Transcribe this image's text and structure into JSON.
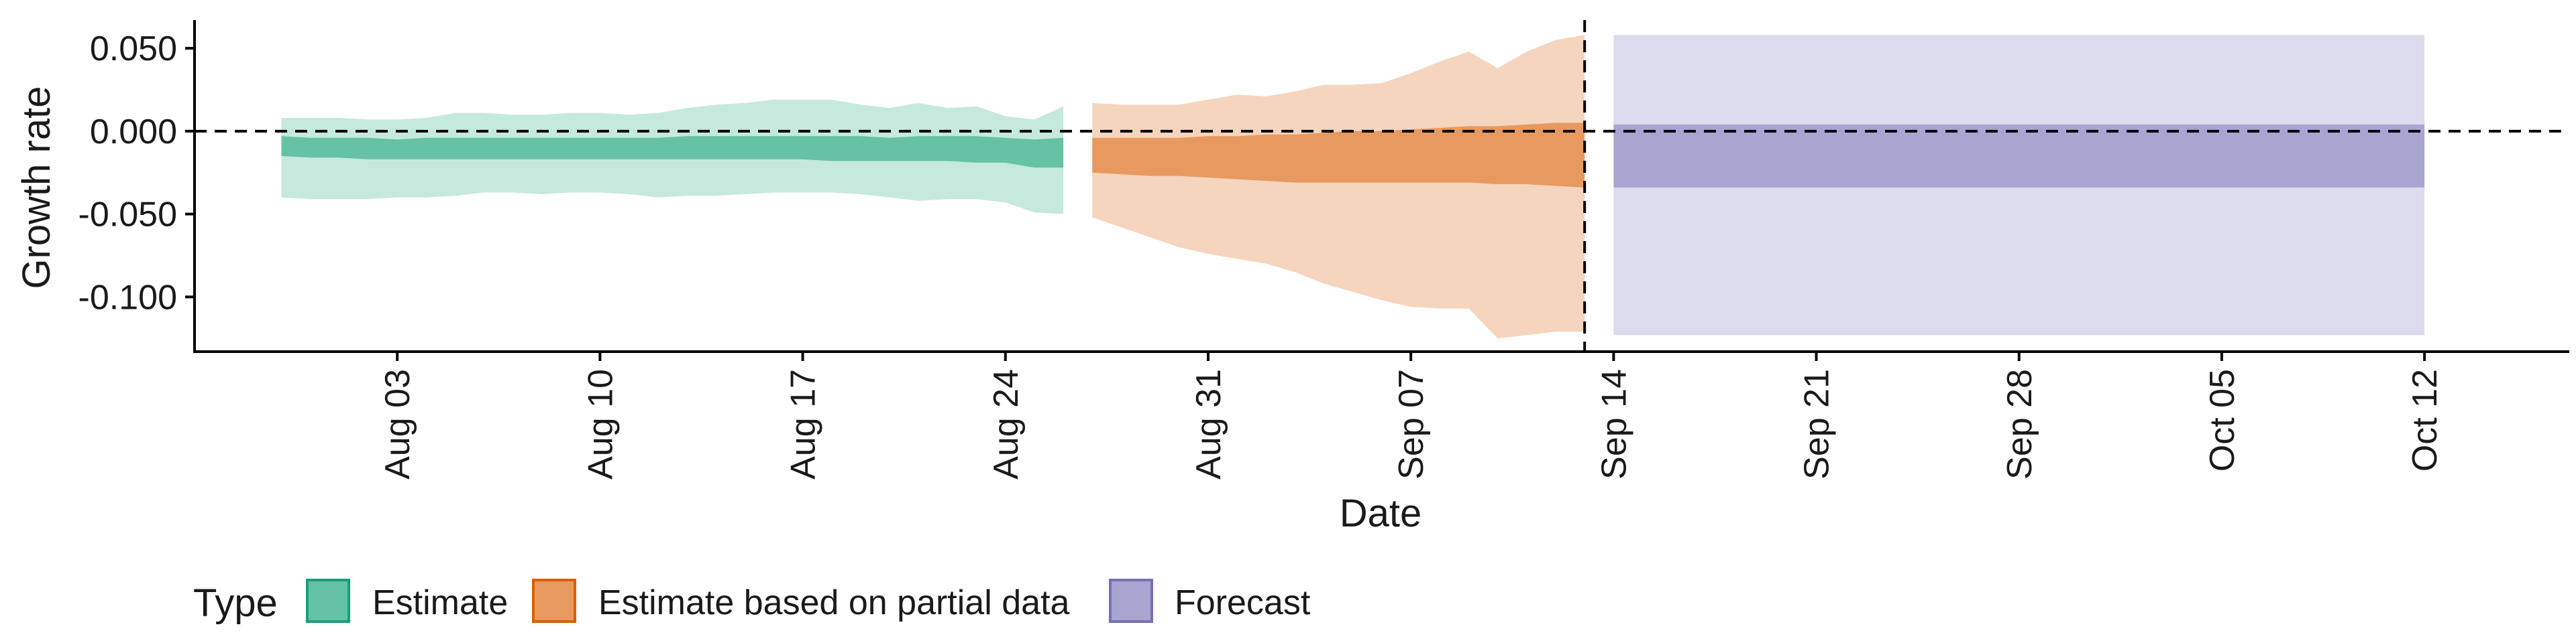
{
  "chart_data": {
    "type": "area",
    "title": "",
    "xlabel": "Date",
    "ylabel": "Growth rate",
    "x_range": [
      "2020-07-27",
      "2020-10-17"
    ],
    "ylim": [
      -0.133,
      0.067
    ],
    "y_ticks": [
      {
        "value": 0.05,
        "label": "0.050"
      },
      {
        "value": 0.0,
        "label": "0.000"
      },
      {
        "value": -0.05,
        "label": "-0.050"
      },
      {
        "value": -0.1,
        "label": "-0.100"
      }
    ],
    "x_ticks": [
      {
        "date": "2020-08-03",
        "label": "Aug 03"
      },
      {
        "date": "2020-08-10",
        "label": "Aug 10"
      },
      {
        "date": "2020-08-17",
        "label": "Aug 17"
      },
      {
        "date": "2020-08-24",
        "label": "Aug 24"
      },
      {
        "date": "2020-08-31",
        "label": "Aug 31"
      },
      {
        "date": "2020-09-07",
        "label": "Sep 07"
      },
      {
        "date": "2020-09-14",
        "label": "Sep 14"
      },
      {
        "date": "2020-09-21",
        "label": "Sep 21"
      },
      {
        "date": "2020-09-28",
        "label": "Sep 28"
      },
      {
        "date": "2020-10-05",
        "label": "Oct 05"
      },
      {
        "date": "2020-10-12",
        "label": "Oct 12"
      }
    ],
    "reference_lines": {
      "horizontal_y": 0.0,
      "vertical_date": "2020-09-13"
    },
    "grid": false,
    "legend_position": "bottom-left",
    "legend_title": "Type",
    "series": [
      {
        "name": "Estimate",
        "color_inner": "#66c2a5",
        "color_outer": "#c6e9dd",
        "border": "#1b9e77",
        "x": [
          "2020-07-30",
          "2020-07-31",
          "2020-08-01",
          "2020-08-02",
          "2020-08-03",
          "2020-08-04",
          "2020-08-05",
          "2020-08-06",
          "2020-08-07",
          "2020-08-08",
          "2020-08-09",
          "2020-08-10",
          "2020-08-11",
          "2020-08-12",
          "2020-08-13",
          "2020-08-14",
          "2020-08-15",
          "2020-08-16",
          "2020-08-17",
          "2020-08-18",
          "2020-08-19",
          "2020-08-20",
          "2020-08-21",
          "2020-08-22",
          "2020-08-23",
          "2020-08-24",
          "2020-08-25",
          "2020-08-26"
        ],
        "outer_upper": [
          0.008,
          0.008,
          0.008,
          0.007,
          0.007,
          0.008,
          0.011,
          0.011,
          0.01,
          0.01,
          0.011,
          0.011,
          0.01,
          0.011,
          0.014,
          0.016,
          0.017,
          0.019,
          0.019,
          0.019,
          0.016,
          0.014,
          0.017,
          0.014,
          0.015,
          0.009,
          0.007,
          0.015
        ],
        "inner_upper": [
          -0.003,
          -0.004,
          -0.004,
          -0.004,
          -0.005,
          -0.004,
          -0.004,
          -0.004,
          -0.004,
          -0.004,
          -0.004,
          -0.004,
          -0.004,
          -0.004,
          -0.003,
          -0.003,
          -0.003,
          -0.003,
          -0.003,
          -0.003,
          -0.003,
          -0.004,
          -0.003,
          -0.003,
          -0.003,
          -0.004,
          -0.005,
          -0.004
        ],
        "inner_lower": [
          -0.015,
          -0.016,
          -0.016,
          -0.017,
          -0.017,
          -0.017,
          -0.017,
          -0.017,
          -0.017,
          -0.017,
          -0.017,
          -0.017,
          -0.017,
          -0.017,
          -0.017,
          -0.017,
          -0.017,
          -0.017,
          -0.017,
          -0.018,
          -0.018,
          -0.018,
          -0.018,
          -0.018,
          -0.019,
          -0.019,
          -0.022,
          -0.022
        ],
        "outer_lower": [
          -0.04,
          -0.041,
          -0.041,
          -0.041,
          -0.04,
          -0.04,
          -0.039,
          -0.037,
          -0.037,
          -0.038,
          -0.037,
          -0.037,
          -0.038,
          -0.04,
          -0.039,
          -0.039,
          -0.038,
          -0.037,
          -0.037,
          -0.037,
          -0.038,
          -0.04,
          -0.042,
          -0.041,
          -0.041,
          -0.043,
          -0.049,
          -0.05
        ]
      },
      {
        "name": "Estimate based on partial data",
        "color_inner": "#e89960",
        "color_outer": "#f5d5bd",
        "border": "#d95f02",
        "x": [
          "2020-08-27",
          "2020-08-28",
          "2020-08-29",
          "2020-08-30",
          "2020-08-31",
          "2020-09-01",
          "2020-09-02",
          "2020-09-03",
          "2020-09-04",
          "2020-09-05",
          "2020-09-06",
          "2020-09-07",
          "2020-09-08",
          "2020-09-09",
          "2020-09-10",
          "2020-09-11",
          "2020-09-12",
          "2020-09-13"
        ],
        "outer_upper": [
          0.017,
          0.016,
          0.016,
          0.016,
          0.019,
          0.022,
          0.021,
          0.024,
          0.028,
          0.028,
          0.029,
          0.035,
          0.042,
          0.048,
          0.038,
          0.048,
          0.055,
          0.058
        ],
        "inner_upper": [
          -0.004,
          -0.004,
          -0.004,
          -0.004,
          -0.003,
          -0.003,
          -0.002,
          -0.002,
          -0.001,
          0.0,
          0.0,
          0.001,
          0.002,
          0.003,
          0.003,
          0.004,
          0.005,
          0.005
        ],
        "inner_lower": [
          -0.025,
          -0.026,
          -0.027,
          -0.027,
          -0.028,
          -0.029,
          -0.03,
          -0.031,
          -0.031,
          -0.031,
          -0.031,
          -0.031,
          -0.031,
          -0.031,
          -0.032,
          -0.032,
          -0.033,
          -0.034
        ],
        "outer_lower": [
          -0.052,
          -0.058,
          -0.064,
          -0.07,
          -0.074,
          -0.077,
          -0.08,
          -0.085,
          -0.092,
          -0.097,
          -0.102,
          -0.106,
          -0.107,
          -0.107,
          -0.125,
          -0.123,
          -0.121,
          -0.121
        ]
      },
      {
        "name": "Forecast",
        "color_inner": "#a8a5d1",
        "color_outer": "#dcdbed",
        "border": "#7570b3",
        "x": [
          "2020-09-14",
          "2020-10-12"
        ],
        "outer_upper": [
          0.058,
          0.058
        ],
        "inner_upper": [
          0.004,
          0.004
        ],
        "inner_lower": [
          -0.034,
          -0.034
        ],
        "outer_lower": [
          -0.123,
          -0.123
        ]
      }
    ]
  }
}
